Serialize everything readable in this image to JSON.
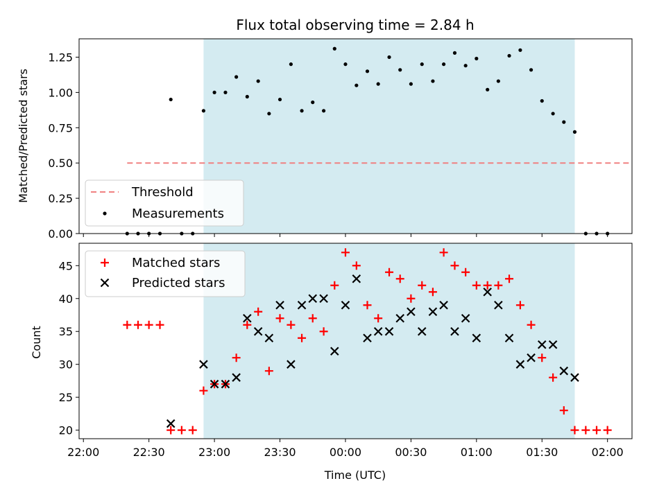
{
  "title": "Flux total observing time = 2.84 h",
  "chart_data": [
    {
      "type": "scatter",
      "ylabel": "Matched/Predicted stars",
      "ylim": [
        0,
        1.38
      ],
      "xlim": [
        -0.2,
        4.02
      ],
      "yticks": [
        "0.00",
        "0.25",
        "0.50",
        "0.75",
        "1.00",
        "1.25"
      ],
      "ytick_values": [
        0,
        0.25,
        0.5,
        0.75,
        1.0,
        1.25
      ],
      "shaded_span": [
        0.75,
        3.583
      ],
      "shade_color": "#d4ebf1",
      "threshold": {
        "name": "Threshold",
        "value": 0.5,
        "x": [
          0.167,
          4.0
        ],
        "color": "#f08080"
      },
      "series": [
        {
          "name": "Measurements",
          "color": "#000000",
          "x": [
            0.167,
            0.25,
            0.333,
            0.417,
            0.5,
            0.583,
            0.667,
            0.75,
            0.833,
            0.917,
            1.0,
            1.083,
            1.167,
            1.25,
            1.333,
            1.417,
            1.5,
            1.583,
            1.667,
            1.75,
            1.833,
            1.917,
            2.0,
            2.083,
            2.167,
            2.25,
            2.333,
            2.417,
            2.5,
            2.583,
            2.667,
            2.75,
            2.833,
            2.917,
            3.0,
            3.083,
            3.167,
            3.25,
            3.333,
            3.417,
            3.5,
            3.583,
            3.667,
            3.75,
            3.833
          ],
          "y": [
            0,
            0,
            0,
            0,
            0.95,
            0,
            0,
            0.87,
            1.0,
            1.0,
            1.11,
            0.97,
            1.08,
            0.85,
            0.95,
            1.2,
            0.87,
            0.93,
            0.87,
            1.31,
            1.2,
            1.05,
            1.15,
            1.06,
            1.25,
            1.16,
            1.06,
            1.2,
            1.08,
            1.2,
            1.28,
            1.19,
            1.24,
            1.02,
            1.08,
            1.26,
            1.3,
            1.16,
            0.94,
            0.85,
            0.79,
            0.72,
            0,
            0,
            0
          ]
        }
      ],
      "legend": {
        "position": "lower-left"
      }
    },
    {
      "type": "scatter",
      "ylabel": "Count",
      "xlabel": "Time (UTC)",
      "ylim": [
        18.7,
        48.4
      ],
      "xlim": [
        -0.2,
        4.02
      ],
      "yticks": [
        "20",
        "25",
        "30",
        "35",
        "40",
        "45"
      ],
      "ytick_values": [
        20,
        25,
        30,
        35,
        40,
        45
      ],
      "xticks": [
        "22:00",
        "22:30",
        "23:00",
        "23:30",
        "00:00",
        "00:30",
        "01:00",
        "01:30",
        "02:00"
      ],
      "xtick_values": [
        -0.167,
        0.333,
        0.833,
        1.333,
        1.833,
        2.333,
        2.833,
        3.333,
        3.833
      ],
      "shaded_span": [
        0.75,
        3.583
      ],
      "shade_color": "#d4ebf1",
      "series": [
        {
          "name": "Matched stars",
          "marker": "+",
          "color": "#ff0000",
          "x": [
            0.167,
            0.25,
            0.333,
            0.417,
            0.5,
            0.583,
            0.667,
            0.75,
            0.833,
            0.917,
            1.0,
            1.083,
            1.167,
            1.25,
            1.333,
            1.417,
            1.5,
            1.583,
            1.667,
            1.75,
            1.833,
            1.917,
            2.0,
            2.083,
            2.167,
            2.25,
            2.333,
            2.417,
            2.5,
            2.583,
            2.667,
            2.75,
            2.833,
            2.917,
            3.0,
            3.083,
            3.167,
            3.25,
            3.333,
            3.417,
            3.5,
            3.583,
            3.667,
            3.75,
            3.833
          ],
          "y": [
            36,
            36,
            36,
            36,
            20,
            20,
            20,
            26,
            27,
            27,
            31,
            36,
            38,
            29,
            37,
            36,
            34,
            37,
            35,
            42,
            47,
            45,
            39,
            37,
            44,
            43,
            40,
            42,
            41,
            47,
            45,
            44,
            42,
            42,
            42,
            43,
            39,
            36,
            31,
            28,
            23,
            20,
            20,
            20,
            20
          ]
        },
        {
          "name": "Predicted stars",
          "marker": "x",
          "color": "#000000",
          "x": [
            0.5,
            0.75,
            0.833,
            0.917,
            1.0,
            1.083,
            1.167,
            1.25,
            1.333,
            1.417,
            1.5,
            1.583,
            1.667,
            1.75,
            1.833,
            1.917,
            2.0,
            2.083,
            2.167,
            2.25,
            2.333,
            2.417,
            2.5,
            2.583,
            2.667,
            2.75,
            2.833,
            2.917,
            3.0,
            3.083,
            3.167,
            3.25,
            3.333,
            3.417,
            3.5,
            3.583
          ],
          "y": [
            21,
            30,
            27,
            27,
            28,
            37,
            35,
            34,
            39,
            30,
            39,
            40,
            40,
            32,
            39,
            43,
            34,
            35,
            35,
            37,
            38,
            35,
            38,
            39,
            35,
            37,
            34,
            41,
            39,
            34,
            30,
            31,
            33,
            33,
            29,
            28
          ]
        }
      ],
      "legend": {
        "position": "upper-left"
      }
    }
  ]
}
